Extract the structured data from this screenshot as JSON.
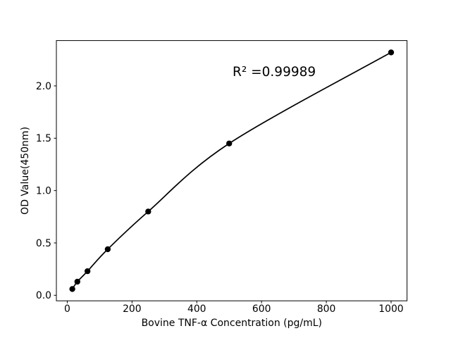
{
  "figure": {
    "background_color": "#ffffff"
  },
  "chart_data": {
    "type": "scatter",
    "subtype": "standard-curve-with-fitted-line",
    "title": "",
    "xlabel": "Bovine TNF-α Concentration (pg/mL)",
    "ylabel": "OD Value(450nm)",
    "annotation": "R² =0.99989",
    "r_squared": 0.99989,
    "x": [
      15.6,
      31.2,
      62.5,
      125,
      250,
      500,
      1000
    ],
    "y": [
      0.06,
      0.13,
      0.23,
      0.44,
      0.8,
      1.45,
      2.32
    ],
    "series_name": "Bovine TNF-α standards",
    "fit_line": true,
    "xlim": [
      -33.6,
      1049.2
    ],
    "ylim": [
      -0.053,
      2.433
    ],
    "x_tick_values": [
      0,
      200,
      400,
      600,
      800,
      1000
    ],
    "x_tick_labels": [
      "0",
      "200",
      "400",
      "600",
      "800",
      "1000"
    ],
    "y_tick_values": [
      0,
      0.5,
      1.0,
      1.5,
      2.0
    ],
    "y_tick_labels": [
      "0.0",
      "0.5",
      "1.0",
      "1.5",
      "2.0"
    ],
    "grid": false,
    "legend": "none",
    "line_color": "#000000",
    "marker_color": "#000000",
    "axis_color": "#000000"
  }
}
